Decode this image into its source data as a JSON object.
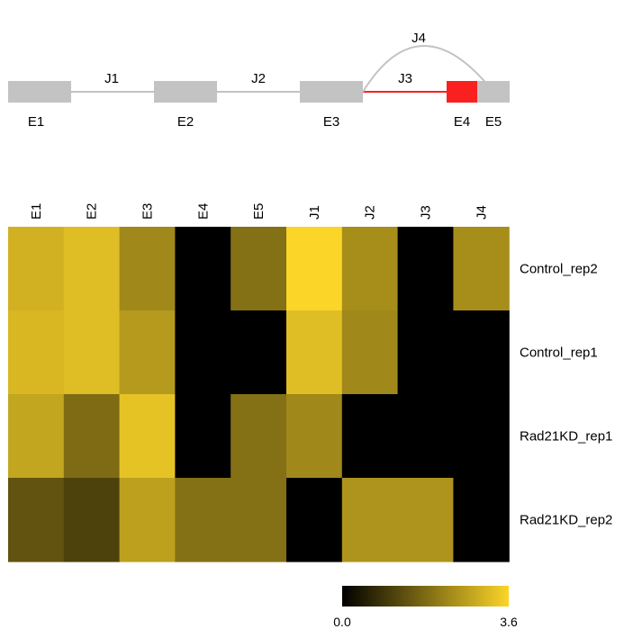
{
  "gene_model": {
    "exons": [
      {
        "label": "E1",
        "color": "#c3c3c3"
      },
      {
        "label": "E2",
        "color": "#c3c3c3"
      },
      {
        "label": "E3",
        "color": "#c3c3c3"
      },
      {
        "label": "E4",
        "color": "#fa2020"
      },
      {
        "label": "E5",
        "color": "#c3c3c3"
      }
    ],
    "junctions": [
      {
        "label": "J1",
        "from": "E1",
        "to": "E2",
        "color": "#c3c3c3"
      },
      {
        "label": "J2",
        "from": "E2",
        "to": "E3",
        "color": "#c3c3c3"
      },
      {
        "label": "J3",
        "from": "E3",
        "to": "E4",
        "color": "#fa2020"
      },
      {
        "label": "J4",
        "from": "E3",
        "to": "E5",
        "color": "#c3c3c3"
      }
    ]
  },
  "chart_data": {
    "type": "heatmap",
    "columns": [
      "E1",
      "E2",
      "E3",
      "E4",
      "E5",
      "J1",
      "J2",
      "J3",
      "J4"
    ],
    "rows": [
      "Control_rep2",
      "Control_rep1",
      "Rad21KD_rep1",
      "Rad21KD_rep2"
    ],
    "values": [
      [
        3.0,
        3.2,
        2.3,
        0.0,
        1.9,
        3.6,
        2.4,
        0.0,
        2.4
      ],
      [
        3.1,
        3.2,
        2.6,
        0.0,
        0.0,
        3.2,
        2.3,
        0.0,
        0.0
      ],
      [
        2.8,
        1.8,
        3.3,
        0.0,
        1.9,
        2.3,
        0.0,
        0.0,
        0.0
      ],
      [
        1.4,
        1.1,
        2.7,
        1.9,
        1.9,
        0.0,
        2.5,
        2.5,
        0.0
      ]
    ],
    "colorbar": {
      "min": 0.0,
      "max": 3.6,
      "min_label": "0.0",
      "max_label": "3.6",
      "low_color": "#000000",
      "high_color": "#fbd528"
    }
  }
}
